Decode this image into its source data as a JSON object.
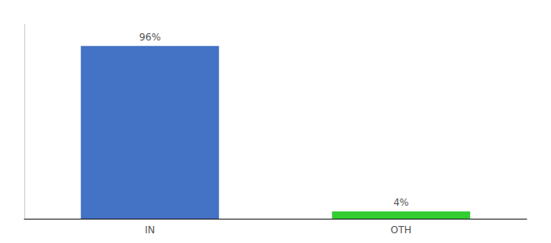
{
  "chart_data": {
    "type": "bar",
    "categories": [
      "IN",
      "OTH"
    ],
    "values": [
      96,
      4
    ],
    "value_labels": [
      "96%",
      "4%"
    ],
    "colors": [
      "#4472c4",
      "#33cc33"
    ],
    "data_labels": true,
    "ylim": [
      0,
      108
    ],
    "grid": false,
    "tick_labels": "x"
  }
}
